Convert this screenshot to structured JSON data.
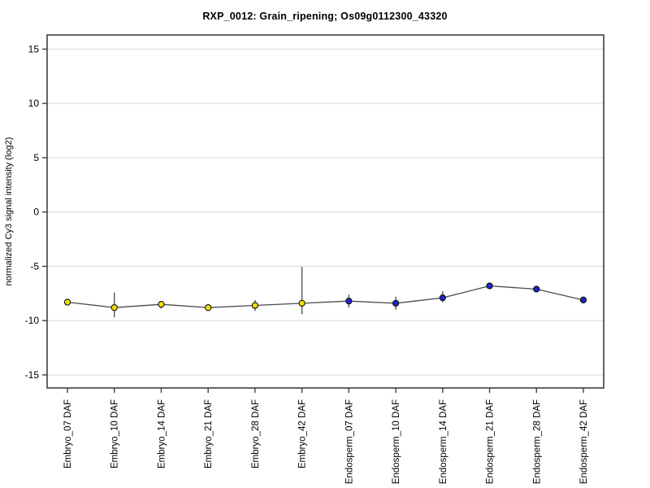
{
  "page": {
    "background": "#ffffff"
  },
  "chart_data": {
    "type": "line",
    "title": "RXP_0012: Grain_ripening; Os09g0112300_43320",
    "ylabel": "normalized Cy3 signal intensity (log2)",
    "xlabel": "",
    "categories": [
      "Embryo_07 DAF",
      "Embryo_10 DAF",
      "Embryo_14 DAF",
      "Embryo_21 DAF",
      "Embryo_28 DAF",
      "Embryo_42 DAF",
      "Endosperm_07 DAF",
      "Endosperm_10 DAF",
      "Endosperm_14 DAF",
      "Endosperm_21 DAF",
      "Endosperm_28 DAF",
      "Endosperm_42 DAF"
    ],
    "values": [
      -8.3,
      -8.8,
      -8.5,
      -8.8,
      -8.6,
      -8.4,
      -8.2,
      -8.4,
      -7.9,
      -6.8,
      -7.1,
      -8.1
    ],
    "error_low": [
      null,
      -9.7,
      -8.9,
      null,
      -9.1,
      -9.4,
      -8.8,
      -9.0,
      -8.3,
      null,
      -7.4,
      null
    ],
    "error_high": [
      null,
      -7.4,
      -8.2,
      null,
      -8.1,
      -5.05,
      -7.6,
      -7.8,
      -7.3,
      null,
      -6.9,
      null
    ],
    "groups": [
      {
        "name": "Embryo",
        "color": "#f0e000"
      },
      {
        "name": "Endosperm",
        "color": "#2323c8"
      }
    ],
    "group_index": [
      0,
      0,
      0,
      0,
      0,
      0,
      1,
      1,
      1,
      1,
      1,
      1
    ],
    "yticks": [
      15,
      10,
      5,
      0,
      -5,
      -10,
      -15
    ],
    "ylim": [
      -16.2,
      16.3
    ],
    "grid": "horizontal",
    "grid_color": "#d9d9d9",
    "axis_color": "#404040",
    "line_color": "#4a4a4a",
    "point_outline": "#111111",
    "legend": "none"
  }
}
